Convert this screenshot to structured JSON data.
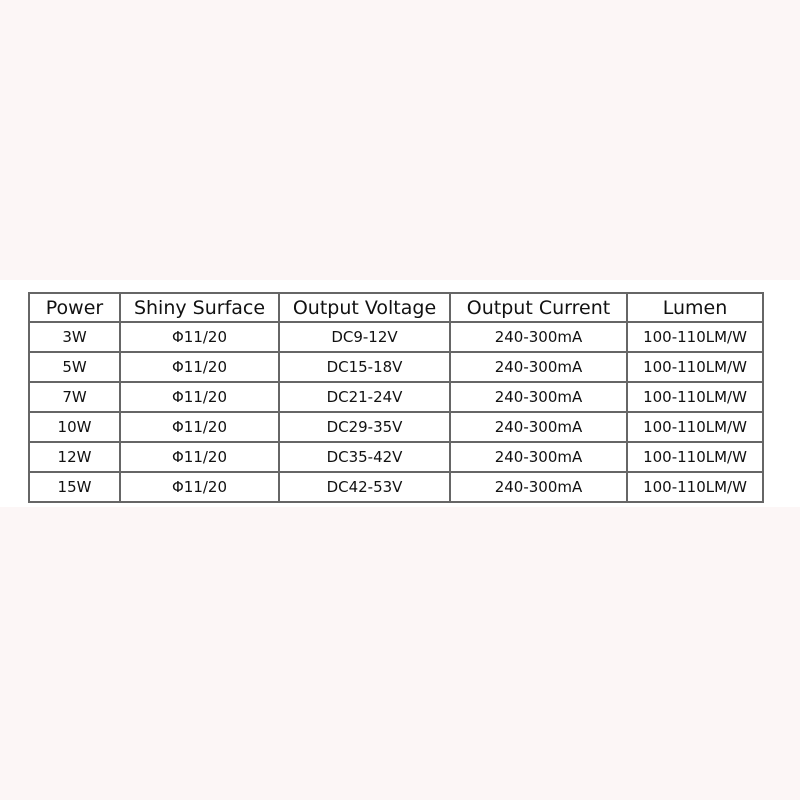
{
  "table": {
    "headers": [
      "Power",
      "Shiny Surface",
      "Output Voltage",
      "Output Current",
      "Lumen"
    ],
    "rows": [
      [
        "3W",
        "Φ11/20",
        "DC9-12V",
        "240-300mA",
        "100-110LM/W"
      ],
      [
        "5W",
        "Φ11/20",
        "DC15-18V",
        "240-300mA",
        "100-110LM/W"
      ],
      [
        "7W",
        "Φ11/20",
        "DC21-24V",
        "240-300mA",
        "100-110LM/W"
      ],
      [
        "10W",
        "Φ11/20",
        "DC29-35V",
        "240-300mA",
        "100-110LM/W"
      ],
      [
        "12W",
        "Φ11/20",
        "DC35-42V",
        "240-300mA",
        "100-110LM/W"
      ],
      [
        "15W",
        "Φ11/20",
        "DC42-53V",
        "240-300mA",
        "100-110LM/W"
      ]
    ]
  }
}
